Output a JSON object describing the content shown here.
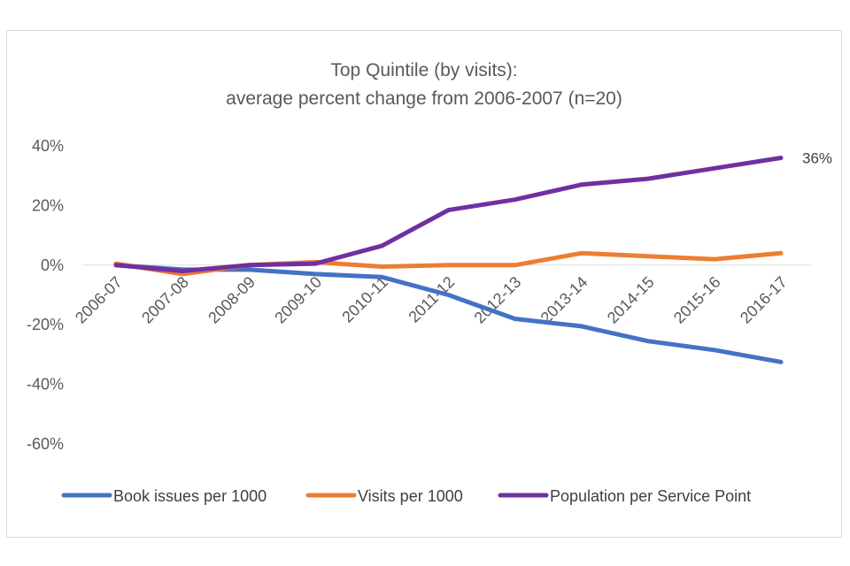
{
  "chart_data": {
    "type": "line",
    "title": [
      "Top Quintile (by visits):",
      "average percent change from 2006-2007 (n=20)"
    ],
    "categories": [
      "2006-07",
      "2007-08",
      "2008-09",
      "2009-10",
      "2010-11",
      "2011-12",
      "2012-13",
      "2013-14",
      "2014-15",
      "2015-16",
      "2016-17"
    ],
    "ylim": [
      -60,
      40
    ],
    "yticks": [
      -60,
      -40,
      -20,
      0,
      20,
      40
    ],
    "ytick_labels": [
      "-60%",
      "-40%",
      "-20%",
      "0%",
      "20%",
      "40%"
    ],
    "series": [
      {
        "name": "Book issues per 1000",
        "color": "#4472c4",
        "values": [
          0,
          -1.5,
          -1.5,
          -3,
          -4,
          -10,
          -18,
          -20.5,
          -25.5,
          -28.5,
          -32.5
        ]
      },
      {
        "name": "Visits per 1000",
        "color": "#ed7d31",
        "values": [
          0.5,
          -3,
          0,
          1,
          -0.5,
          0,
          0,
          4,
          3,
          2,
          4
        ]
      },
      {
        "name": "Population per Service Point",
        "color": "#7030a0",
        "values": [
          0,
          -2,
          0,
          0.5,
          6.5,
          18.5,
          22,
          27,
          29,
          32.5,
          36
        ]
      }
    ],
    "annotations": [
      {
        "series": 2,
        "point": 10,
        "text": "36%"
      }
    ],
    "legend_position": "bottom",
    "grid": false
  }
}
